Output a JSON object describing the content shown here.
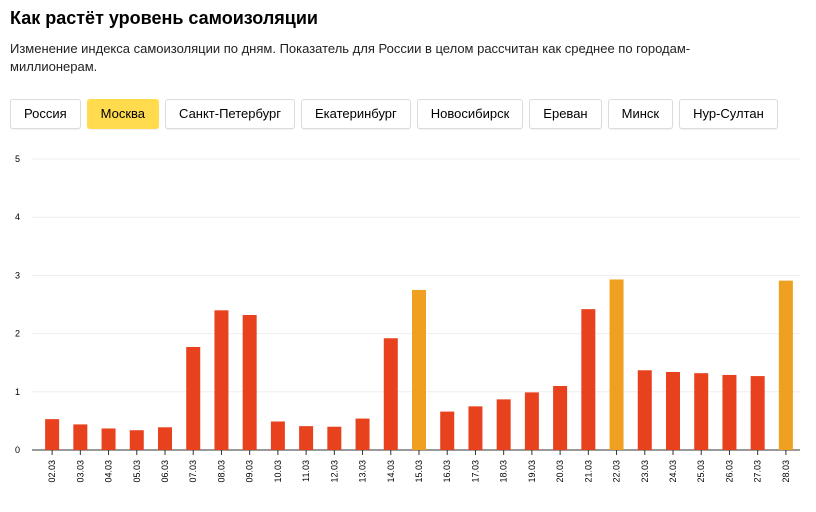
{
  "header": {
    "title": "Как растёт уровень самоизоляции",
    "subtitle": "Изменение индекса самоизоляции по дням. Показатель для России в целом рассчитан как среднее по городам-миллионерам."
  },
  "tabs": [
    {
      "label": "Россия",
      "active": false
    },
    {
      "label": "Москва",
      "active": true
    },
    {
      "label": "Санкт-Петербург",
      "active": false
    },
    {
      "label": "Екатеринбург",
      "active": false
    },
    {
      "label": "Новосибирск",
      "active": false
    },
    {
      "label": "Ереван",
      "active": false
    },
    {
      "label": "Минск",
      "active": false
    },
    {
      "label": "Нур-Султан",
      "active": false
    }
  ],
  "colors": {
    "weekday": "#e8411e",
    "weekend": "#f0a020",
    "active_tab": "#ffdb4d",
    "grid": "#eeeeee"
  },
  "chart_data": {
    "type": "bar",
    "title": "",
    "xlabel": "",
    "ylabel": "",
    "ylim": [
      0,
      5
    ],
    "yticks": [
      0,
      1,
      2,
      3,
      4,
      5
    ],
    "grid": true,
    "categories": [
      "02.03",
      "03.03",
      "04.03",
      "05.03",
      "06.03",
      "07.03",
      "08.03",
      "09.03",
      "10.03",
      "11.03",
      "12.03",
      "13.03",
      "14.03",
      "15.03",
      "16.03",
      "17.03",
      "18.03",
      "19.03",
      "20.03",
      "21.03",
      "22.03",
      "23.03",
      "24.03",
      "25.03",
      "26.03",
      "27.03",
      "28.03"
    ],
    "values": [
      0.53,
      0.44,
      0.37,
      0.34,
      0.39,
      1.77,
      2.4,
      2.32,
      0.49,
      0.41,
      0.4,
      0.54,
      1.92,
      2.75,
      0.66,
      0.75,
      0.87,
      0.99,
      1.1,
      2.42,
      2.93,
      1.37,
      1.34,
      1.32,
      1.29,
      1.27,
      2.91
    ],
    "highlighted": [
      "15.03",
      "22.03",
      "28.03"
    ]
  }
}
